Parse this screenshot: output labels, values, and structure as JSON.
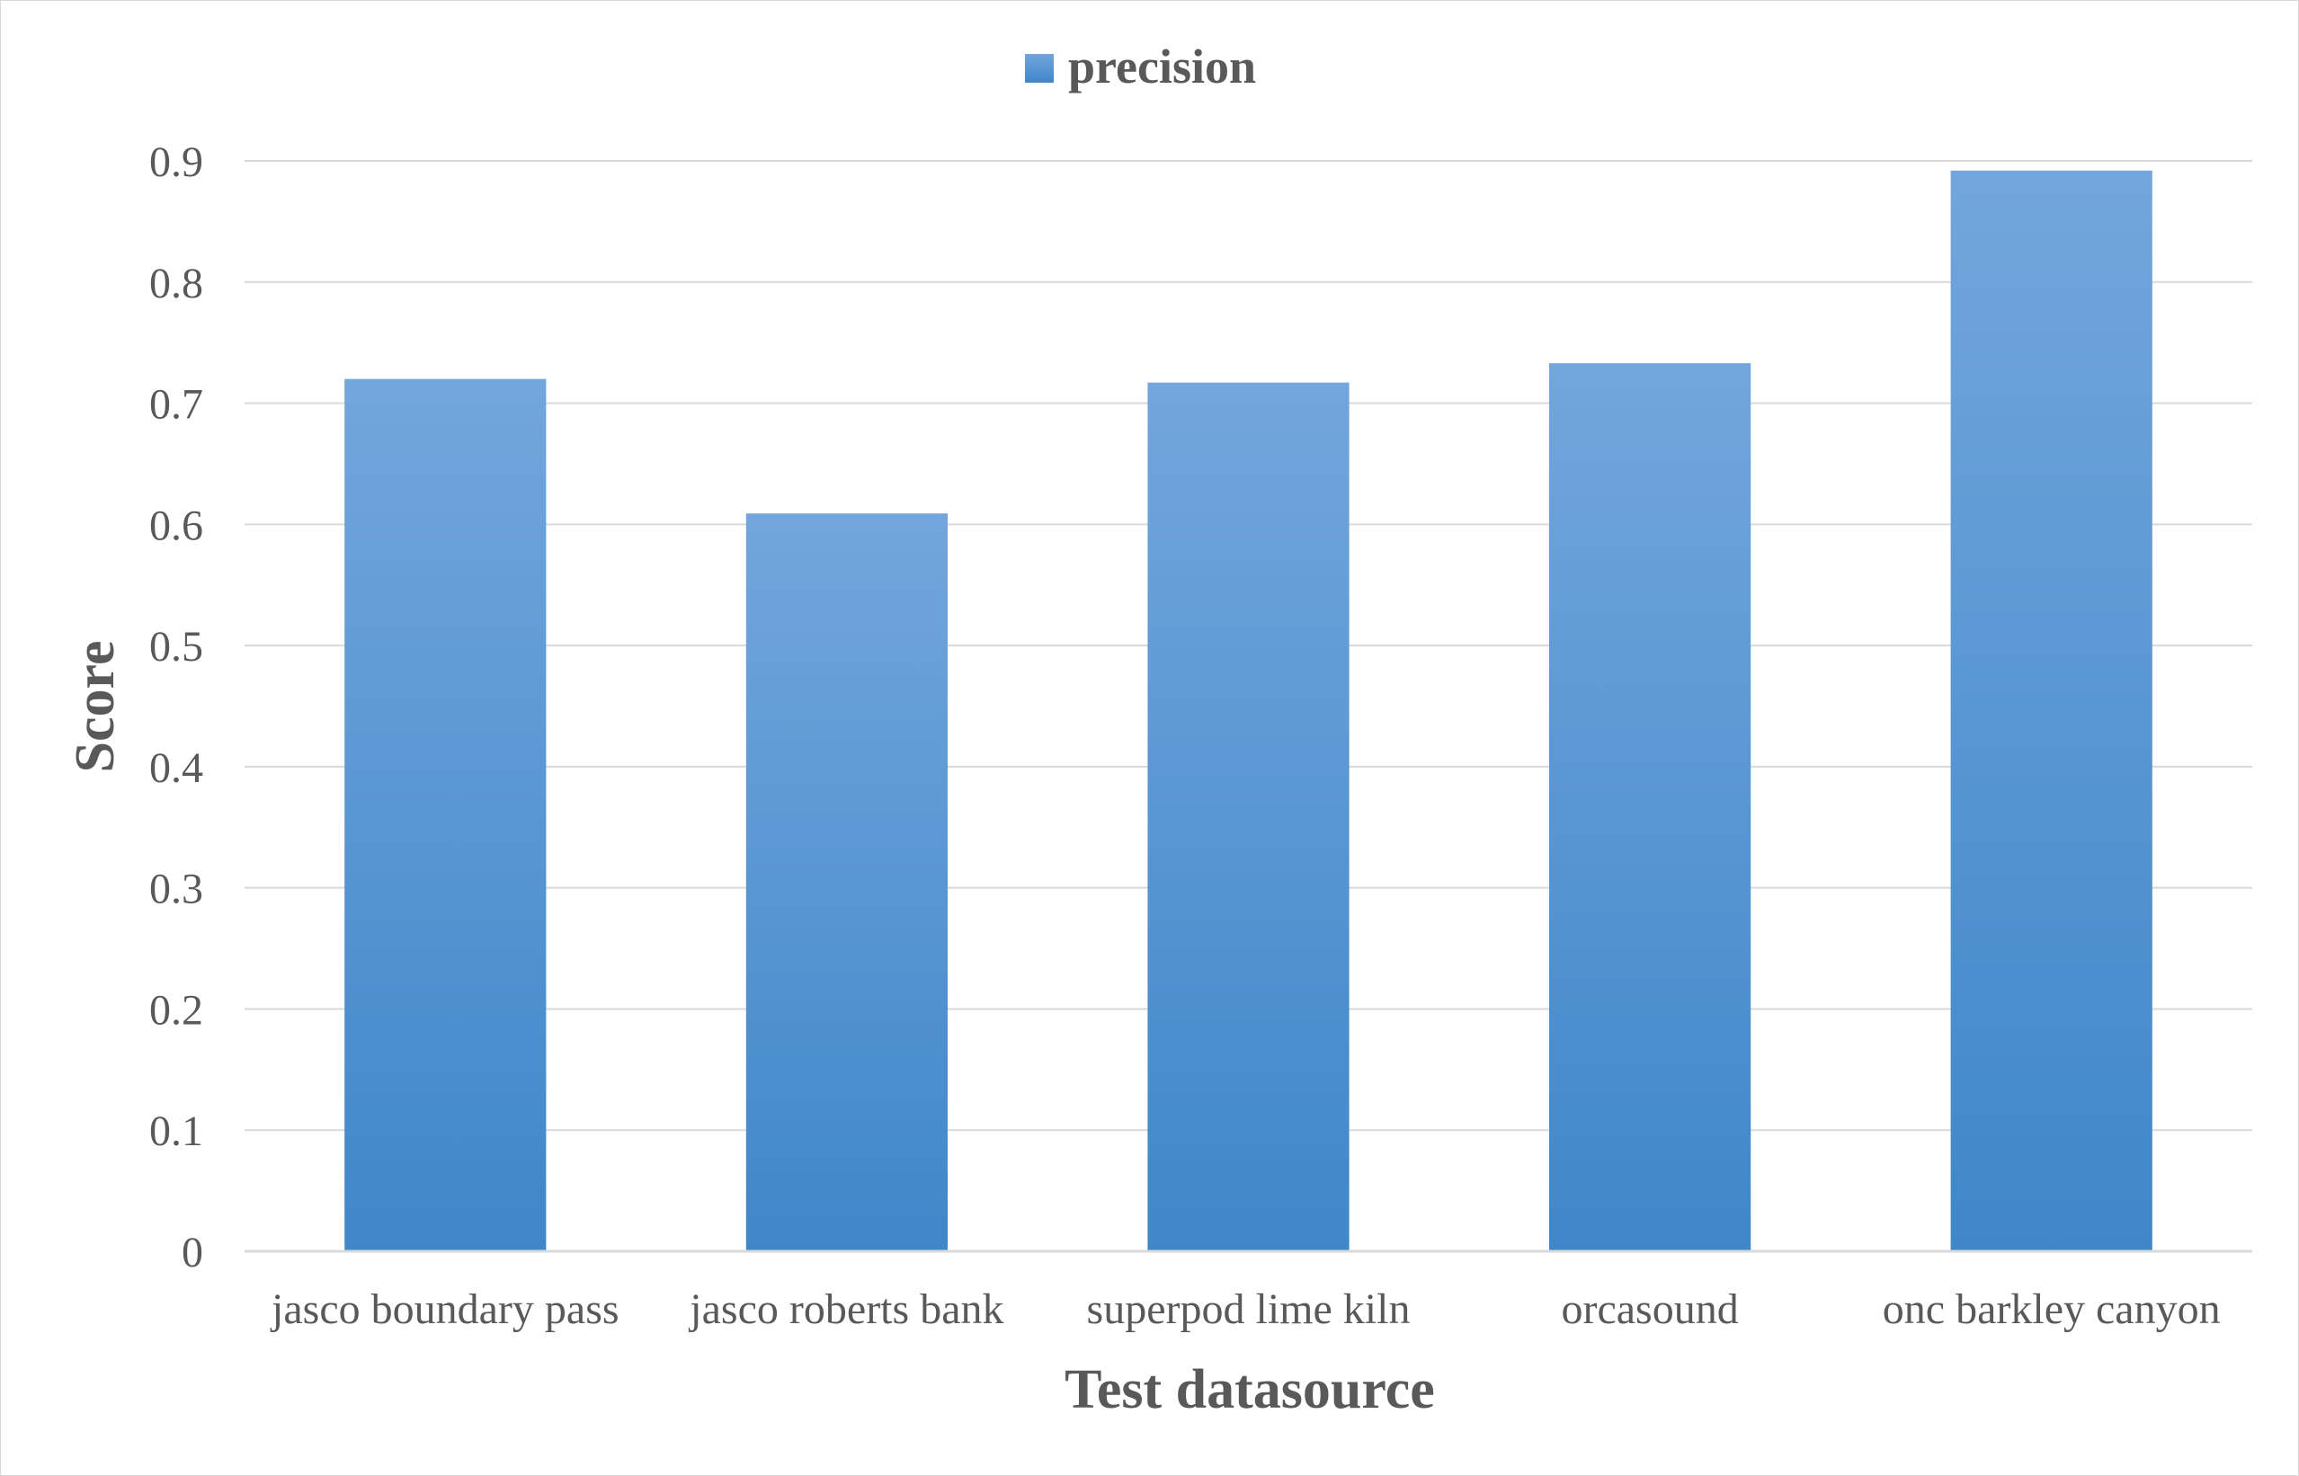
{
  "chart_data": {
    "type": "bar",
    "title": "",
    "xlabel": "Test datasource",
    "ylabel": "Score",
    "categories": [
      "jasco boundary pass",
      "jasco roberts bank",
      "superpod lime kiln",
      "orcasound",
      "onc barkley canyon"
    ],
    "series": [
      {
        "name": "precision",
        "values": [
          0.72,
          0.609,
          0.717,
          0.733,
          0.892
        ]
      }
    ],
    "ylim": [
      0,
      0.9
    ],
    "yticks": [
      "0",
      "0.1",
      "0.2",
      "0.3",
      "0.4",
      "0.5",
      "0.6",
      "0.7",
      "0.8",
      "0.9"
    ],
    "grid": true,
    "legend": "top-center",
    "colors": {
      "bar_top": "#72a6dc",
      "bar_bottom": "#3f87c9",
      "grid": "#d9d9d9",
      "text": "#595959"
    }
  }
}
